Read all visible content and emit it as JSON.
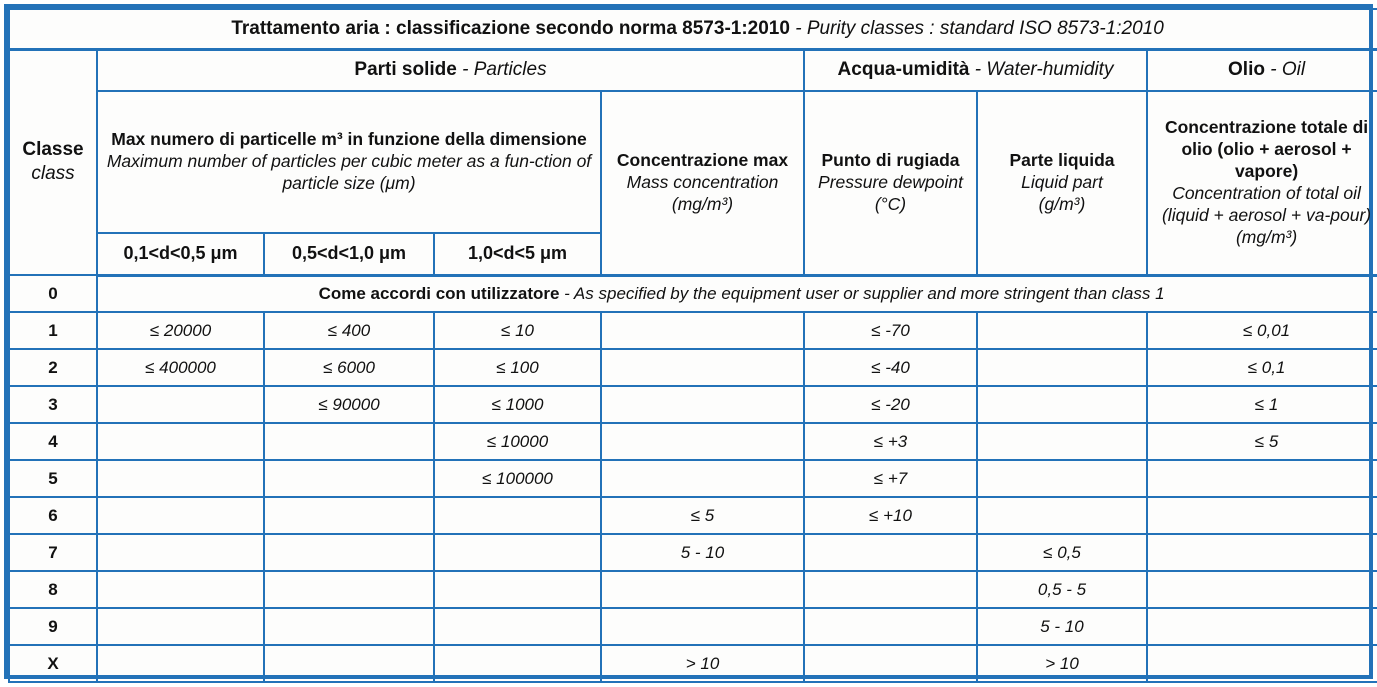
{
  "title": {
    "it": "Trattamento aria : classificazione secondo norma 8573-1:2010",
    "en": " - Purity classes : standard ISO 8573-1:2010"
  },
  "header": {
    "classe": {
      "it": "Classe",
      "en": "class"
    },
    "groups": [
      {
        "it": "Parti solide",
        "en": " - Particles"
      },
      {
        "it": "Acqua-umidità",
        "en": " - Water-humidity"
      },
      {
        "it": "Olio",
        "en": " - Oil"
      }
    ],
    "particles_size": {
      "it": "Max numero di particelle m³ in funzione della dimensione",
      "en": "Maximum number of particles per cubic meter as a fun-ction of particle size  (μm)"
    },
    "mass_concentration": {
      "it": "Concentrazione max",
      "en": "Mass concentration",
      "unit": "(mg/m³)"
    },
    "dewpoint": {
      "it": "Punto di rugiada",
      "en": "Pressure dewpoint",
      "unit": "(°C)"
    },
    "liquid": {
      "it": "Parte liquida",
      "en": "Liquid part",
      "unit": "(g/m³)"
    },
    "oil": {
      "it": "Concentrazione totale di olio (olio + aerosol + vapore)",
      "en": "Concentration of total  oil (liquid + aerosol + va-pour)  (mg/m³)"
    },
    "size_columns": [
      "0,1<d<0,5 μm",
      "0,5<d<1,0 μm",
      "1,0<d<5 μm"
    ]
  },
  "class_zero": {
    "class": "0",
    "note_it": "Come accordi con utilizzatore",
    "note_en": " - As specified by the equipment user or supplier and more stringent than class 1"
  },
  "rows": [
    {
      "class": "1",
      "cells": [
        "≤ 20000",
        "≤ 400",
        "≤ 10",
        "",
        "≤ -70",
        "",
        "≤ 0,01"
      ]
    },
    {
      "class": "2",
      "cells": [
        "≤ 400000",
        "≤ 6000",
        "≤ 100",
        "",
        "≤ -40",
        "",
        "≤ 0,1"
      ]
    },
    {
      "class": "3",
      "cells": [
        "",
        "≤ 90000",
        "≤ 1000",
        "",
        "≤ -20",
        "",
        "≤ 1"
      ]
    },
    {
      "class": "4",
      "cells": [
        "",
        "",
        "≤ 10000",
        "",
        "≤ +3",
        "",
        "≤ 5"
      ]
    },
    {
      "class": "5",
      "cells": [
        "",
        "",
        "≤ 100000",
        "",
        "≤ +7",
        "",
        ""
      ]
    },
    {
      "class": "6",
      "cells": [
        "",
        "",
        "",
        "≤ 5",
        "≤ +10",
        "",
        ""
      ]
    },
    {
      "class": "7",
      "cells": [
        "",
        "",
        "",
        "5 - 10",
        "",
        "≤ 0,5",
        ""
      ]
    },
    {
      "class": "8",
      "cells": [
        "",
        "",
        "",
        "",
        "",
        "0,5 - 5",
        ""
      ]
    },
    {
      "class": "9",
      "cells": [
        "",
        "",
        "",
        "",
        "",
        "5 - 10",
        ""
      ]
    },
    {
      "class": "X",
      "cells": [
        "",
        "",
        "",
        "> 10",
        "",
        "> 10",
        ""
      ]
    }
  ],
  "colors": {
    "border_blue": "#2372b8",
    "text": "#111111",
    "background": "#fdfdfc"
  }
}
